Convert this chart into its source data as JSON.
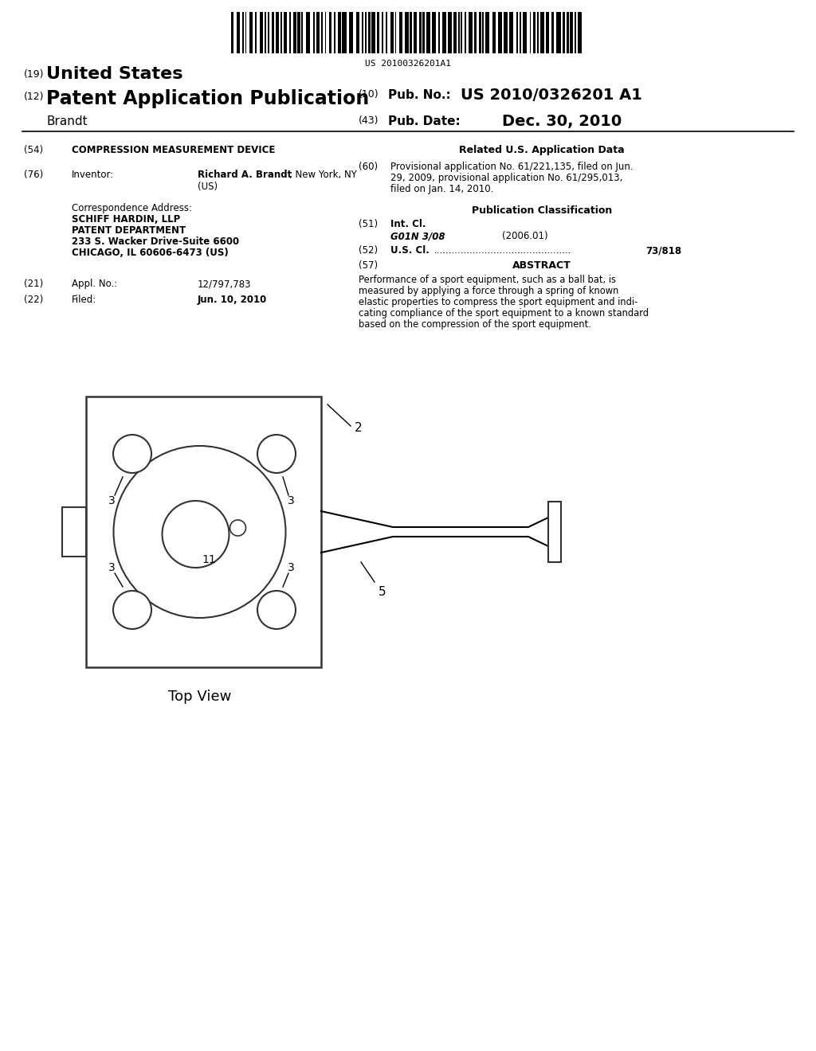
{
  "barcode_text": "US 20100326201A1",
  "title_19": "(19) United States",
  "title_12": "(12) Patent Application Publication",
  "pub_no_label": "(10) Pub. No.:",
  "pub_no_value": "US 2010/0326201 A1",
  "inventor_name": "Brandt",
  "pub_date_label": "(43) Pub. Date:",
  "pub_date_value": "Dec. 30, 2010",
  "field54_label": "(54)",
  "field54_text": "COMPRESSION MEASUREMENT DEVICE",
  "field76_label": "(76)",
  "field76_key": "Inventor:",
  "field76_value_bold": "Richard A. Brandt",
  "field76_value_normal": ", New York, NY",
  "field76_value2": "(US)",
  "corr_label": "Correspondence Address:",
  "corr_line1": "SCHIFF HARDIN, LLP",
  "corr_line2": "PATENT DEPARTMENT",
  "corr_line3": "233 S. Wacker Drive-Suite 6600",
  "corr_line4": "CHICAGO, IL 60606-6473 (US)",
  "field21_label": "(21)",
  "field21_key": "Appl. No.:",
  "field21_value": "12/797,783",
  "field22_label": "(22)",
  "field22_key": "Filed:",
  "field22_value": "Jun. 10, 2010",
  "related_header": "Related U.S. Application Data",
  "field60_label": "(60)",
  "field60_line1": "Provisional application No. 61/221,135, filed on Jun.",
  "field60_line2": "29, 2009, provisional application No. 61/295,013,",
  "field60_line3": "filed on Jan. 14, 2010.",
  "pub_class_header": "Publication Classification",
  "field51_label": "(51)",
  "field51_key": "Int. Cl.",
  "field51_class": "G01N 3/08",
  "field51_year": "(2006.01)",
  "field52_label": "(52)",
  "field52_key": "U.S. Cl.",
  "field52_value": "73/818",
  "field57_label": "(57)",
  "field57_key": "ABSTRACT",
  "abstract_line1": "Performance of a sport equipment, such as a ball bat, is",
  "abstract_line2": "measured by applying a force through a spring of known",
  "abstract_line3": "elastic properties to compress the sport equipment and indi-",
  "abstract_line4": "cating compliance of the sport equipment to a known standard",
  "abstract_line5": "based on the compression of the sport equipment.",
  "diagram_label": "Top View",
  "bg_color": "#ffffff",
  "text_color": "#000000"
}
